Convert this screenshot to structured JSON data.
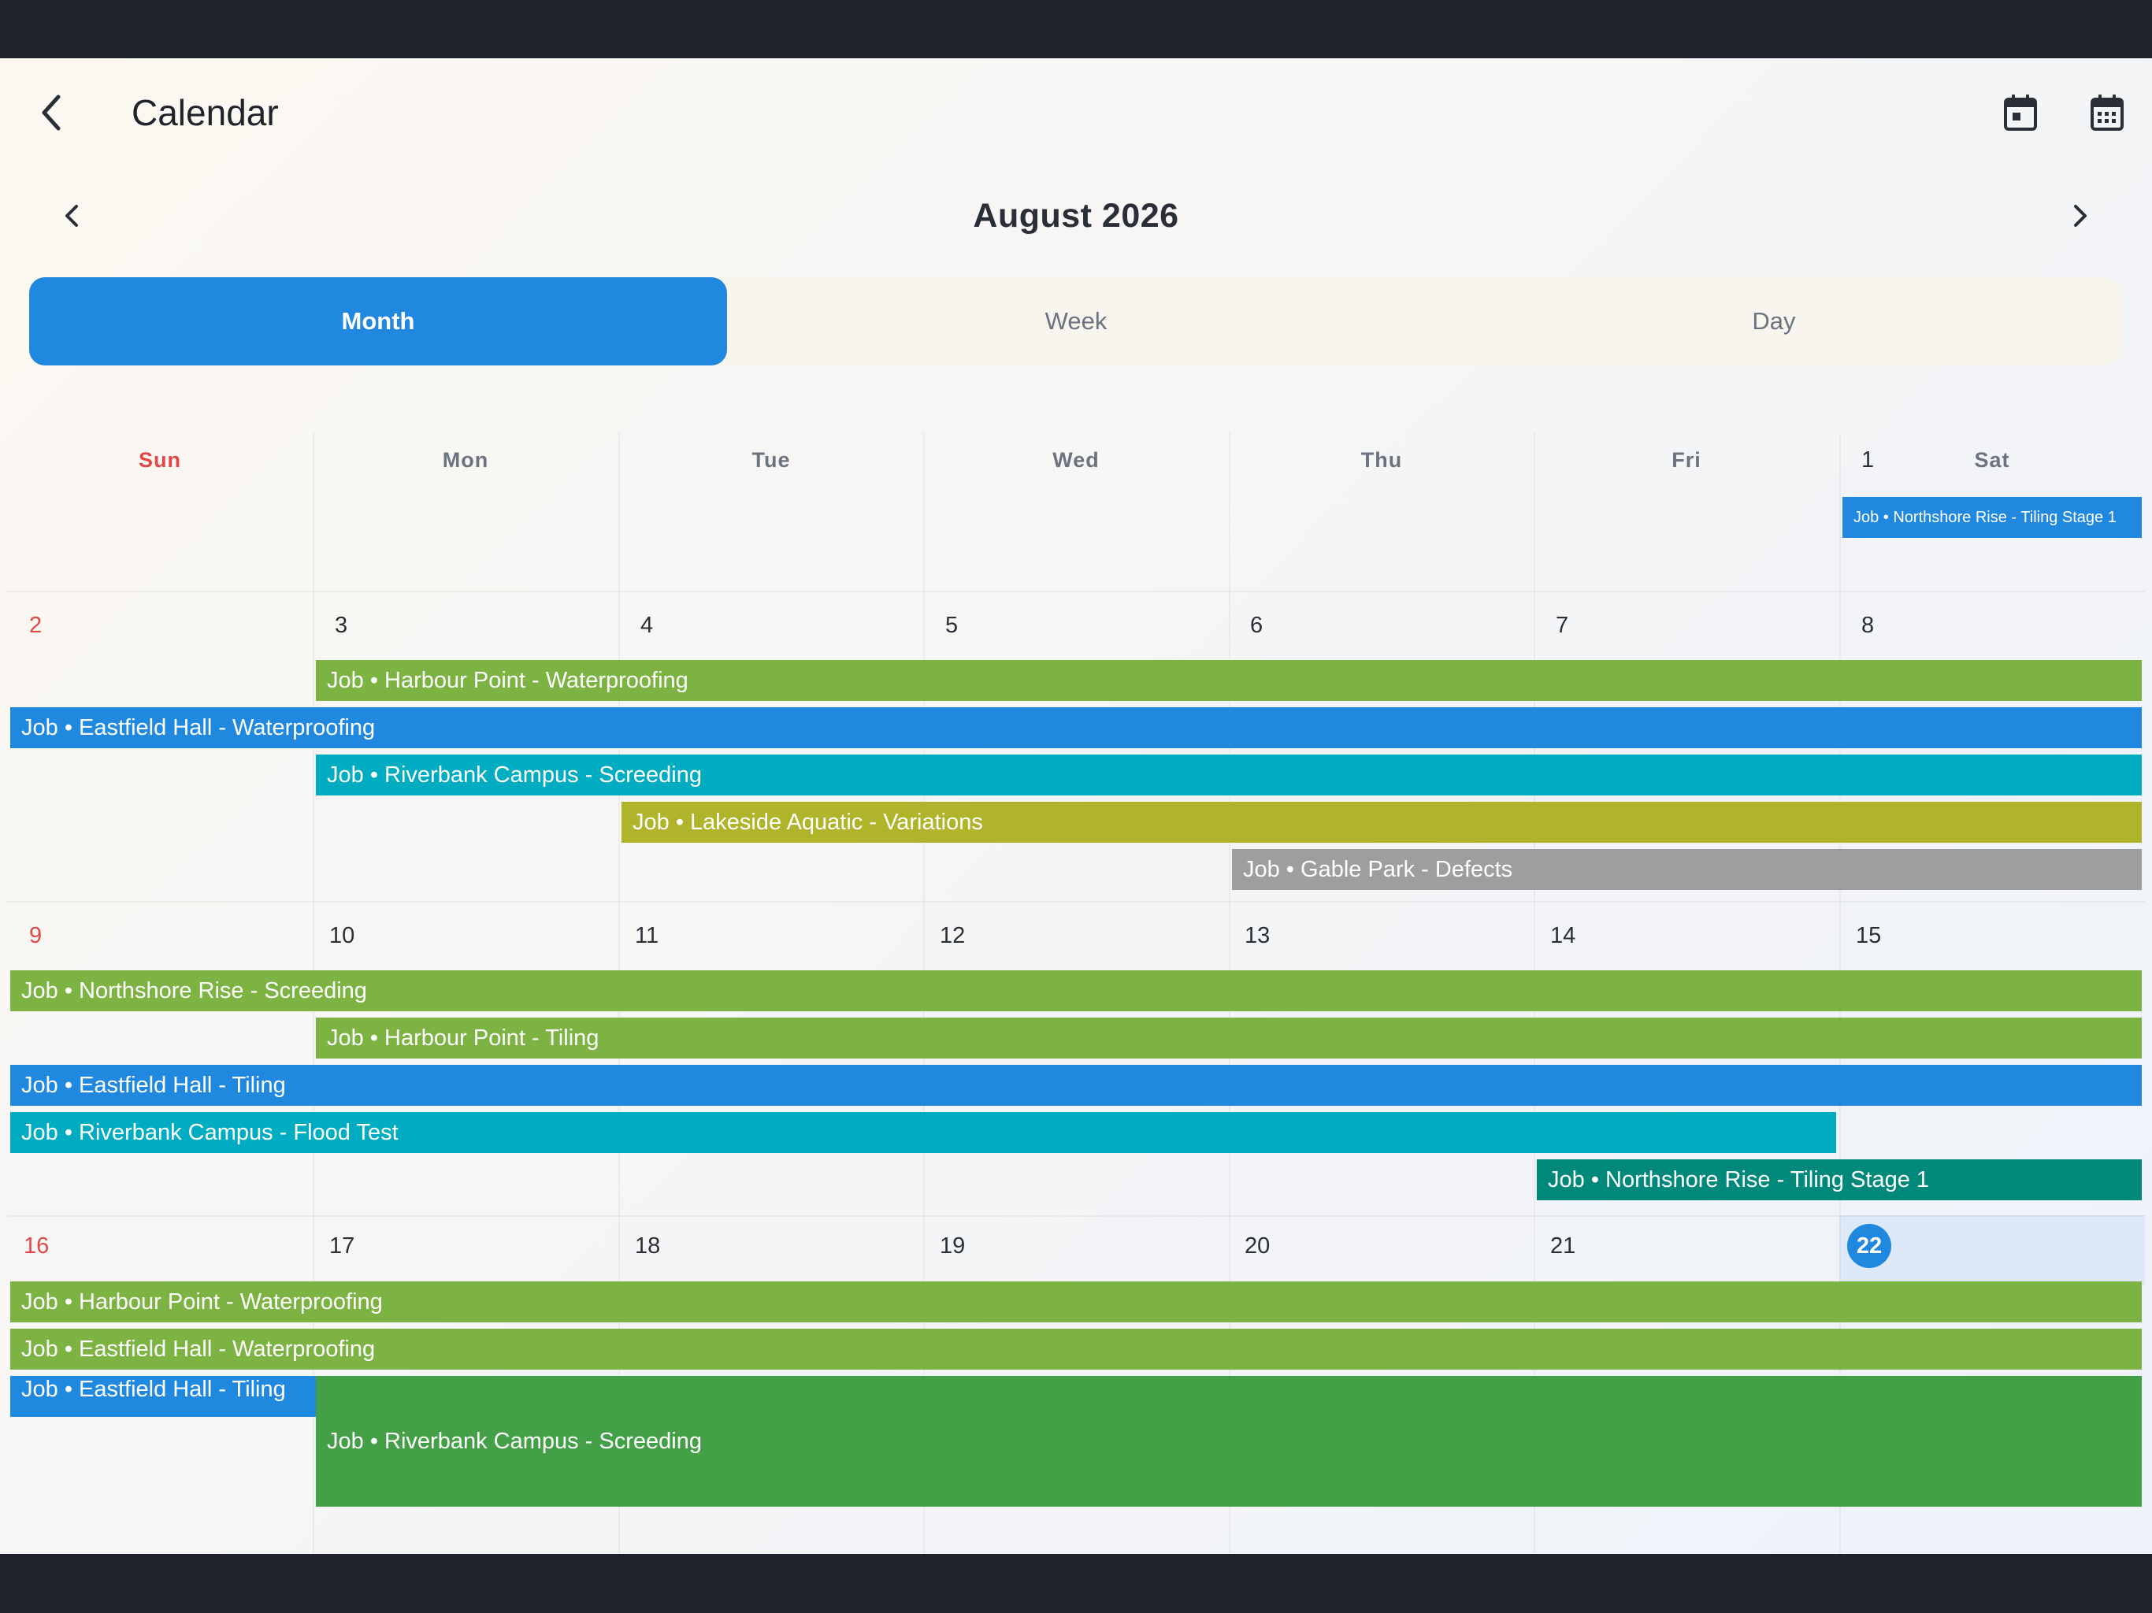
{
  "header": {
    "title": "Calendar",
    "back_icon": "chevron-left-icon",
    "today_icon": "calendar-today-icon",
    "month_view_icon": "calendar-month-icon"
  },
  "nav": {
    "month_title": "August 2026",
    "prev_icon": "chevron-left-icon",
    "next_icon": "chevron-right-icon"
  },
  "view_switcher": {
    "selected": "Month",
    "options": [
      "Month",
      "Week",
      "Day"
    ]
  },
  "weekdays": [
    "Sun",
    "Mon",
    "Tue",
    "Wed",
    "Thu",
    "Fri",
    "Sat"
  ],
  "today": "22",
  "weeks": [
    {
      "days": [
        "",
        "",
        "",
        "",
        "",
        "",
        "1"
      ],
      "events": [
        {
          "label": "Job • Northshore Rise - Tiling Stage 1",
          "color": "#2088df"
        }
      ]
    },
    {
      "days": [
        "2",
        "3",
        "4",
        "5",
        "6",
        "7",
        "8"
      ],
      "events": [
        {
          "label": "Job • Harbour Point - Waterproofing",
          "color": "#7cb342"
        },
        {
          "label": "Job • Eastfield Hall - Waterproofing",
          "color": "#2088df"
        },
        {
          "label": "Job • Riverbank Campus - Screeding",
          "color": "#00acc1"
        },
        {
          "label": "Job • Lakeside Aquatic - Variations",
          "color": "#afb42b"
        },
        {
          "label": "Job • Gable Park - Defects",
          "color": "#9e9e9e"
        }
      ]
    },
    {
      "days": [
        "9",
        "10",
        "11",
        "12",
        "13",
        "14",
        "15"
      ],
      "events": [
        {
          "label": "Job • Northshore Rise - Screeding",
          "color": "#7cb342"
        },
        {
          "label": "Job • Harbour Point - Tiling",
          "color": "#7cb342"
        },
        {
          "label": "Job • Eastfield Hall - Tiling",
          "color": "#2088df"
        },
        {
          "label": "Job • Riverbank Campus - Flood Test",
          "color": "#00acc1"
        },
        {
          "label": "Job • Northshore Rise - Tiling Stage 1",
          "color": "#00897b"
        }
      ]
    },
    {
      "days": [
        "16",
        "17",
        "18",
        "19",
        "20",
        "21",
        "22"
      ],
      "events": [
        {
          "label": "Job • Harbour Point - Waterproofing",
          "color": "#7cb342"
        },
        {
          "label": "Job • Eastfield Hall - Waterproofing",
          "color": "#7cb342"
        },
        {
          "label": "Job • Eastfield Hall - Tiling",
          "color": "#2088df"
        },
        {
          "label": "Job • Riverbank Campus - Screeding",
          "color": "#43a047"
        }
      ]
    }
  ]
}
